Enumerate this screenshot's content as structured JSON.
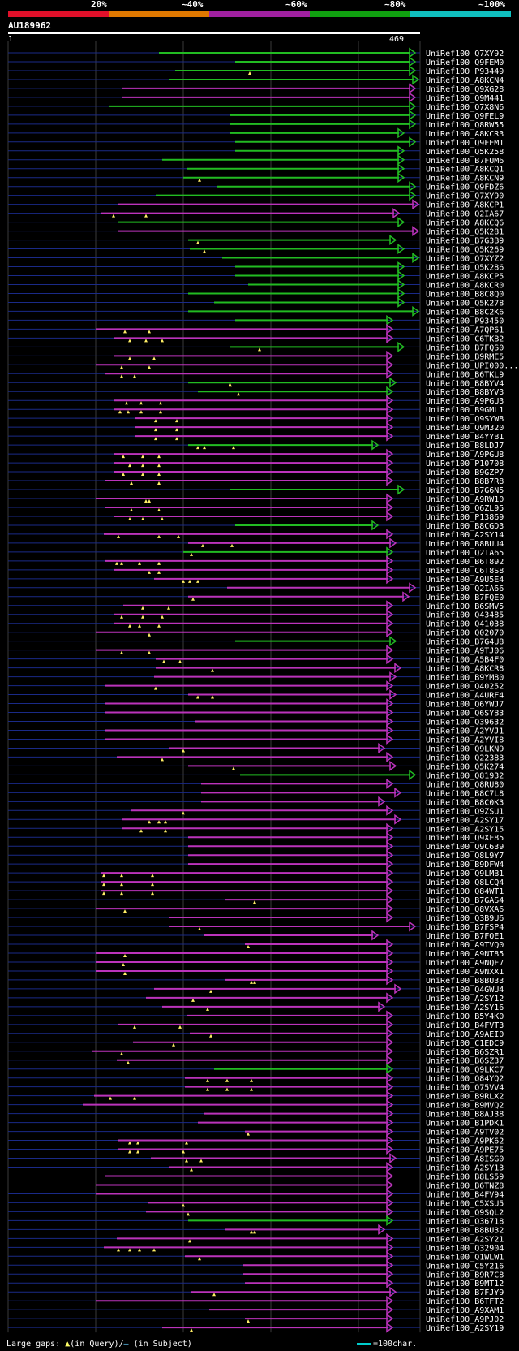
{
  "legend": {
    "labels": [
      "20%",
      "~40%",
      "~60%",
      "~80%",
      "~100%"
    ],
    "colors": [
      "#e0102a",
      "#e07800",
      "#a020a0",
      "#10a010",
      "#10c0c0"
    ]
  },
  "query": {
    "name": "AU189962",
    "start": "1",
    "end": "469"
  },
  "hits": [
    {
      "name": "UniRef100_Q7XY92",
      "x1": 196,
      "x2": 512,
      "c": "g",
      "gaps": []
    },
    {
      "name": "UniRef100_Q9FEM0",
      "x1": 290,
      "x2": 512,
      "c": "g",
      "gaps": []
    },
    {
      "name": "UniRef100_P93449",
      "x1": 216,
      "x2": 512,
      "c": "g",
      "gaps": [
        308
      ]
    },
    {
      "name": "UniRef100_A8KCN4",
      "x1": 208,
      "x2": 516,
      "c": "g",
      "gaps": []
    },
    {
      "name": "UniRef100_Q9XG28",
      "x1": 150,
      "x2": 512,
      "c": "m",
      "gaps": []
    },
    {
      "name": "UniRef100_Q9M441",
      "x1": 150,
      "x2": 512,
      "c": "m",
      "gaps": []
    },
    {
      "name": "UniRef100_Q7X8N6",
      "x1": 134,
      "x2": 512,
      "c": "g",
      "gaps": []
    },
    {
      "name": "UniRef100_Q9FEL9",
      "x1": 284,
      "x2": 512,
      "c": "g",
      "gaps": []
    },
    {
      "name": "UniRef100_Q8RW55",
      "x1": 284,
      "x2": 512,
      "c": "g",
      "gaps": []
    },
    {
      "name": "UniRef100_A8KCR3",
      "x1": 284,
      "x2": 498,
      "c": "g",
      "gaps": []
    },
    {
      "name": "UniRef100_Q9FEM1",
      "x1": 290,
      "x2": 512,
      "c": "g",
      "gaps": []
    },
    {
      "name": "UniRef100_Q5K258",
      "x1": 290,
      "x2": 498,
      "c": "g",
      "gaps": []
    },
    {
      "name": "UniRef100_B7FUM6",
      "x1": 200,
      "x2": 498,
      "c": "g",
      "gaps": []
    },
    {
      "name": "UniRef100_A8KCQ1",
      "x1": 230,
      "x2": 498,
      "c": "g",
      "gaps": []
    },
    {
      "name": "UniRef100_A8KCN9",
      "x1": 226,
      "x2": 498,
      "c": "g",
      "gaps": [
        246
      ]
    },
    {
      "name": "UniRef100_Q9FDZ6",
      "x1": 268,
      "x2": 512,
      "c": "g",
      "gaps": []
    },
    {
      "name": "UniRef100_Q7XY90",
      "x1": 192,
      "x2": 512,
      "c": "g",
      "gaps": []
    },
    {
      "name": "UniRef100_A8KCP1",
      "x1": 146,
      "x2": 516,
      "c": "m",
      "gaps": []
    },
    {
      "name": "UniRef100_Q2IA67",
      "x1": 124,
      "x2": 492,
      "c": "m",
      "gaps": [
        140,
        180
      ]
    },
    {
      "name": "UniRef100_A8KCQ6",
      "x1": 146,
      "x2": 498,
      "c": "g",
      "gaps": []
    },
    {
      "name": "UniRef100_Q5K281",
      "x1": 146,
      "x2": 516,
      "c": "m",
      "gaps": []
    },
    {
      "name": "UniRef100_B7G3B9",
      "x1": 232,
      "x2": 488,
      "c": "g",
      "gaps": [
        244
      ]
    },
    {
      "name": "UniRef100_Q5K269",
      "x1": 234,
      "x2": 498,
      "c": "g",
      "gaps": [
        252
      ]
    },
    {
      "name": "UniRef100_Q7XYZ2",
      "x1": 274,
      "x2": 516,
      "c": "g",
      "gaps": []
    },
    {
      "name": "UniRef100_Q5K286",
      "x1": 290,
      "x2": 498,
      "c": "g",
      "gaps": []
    },
    {
      "name": "UniRef100_A8KCP5",
      "x1": 290,
      "x2": 498,
      "c": "g",
      "gaps": []
    },
    {
      "name": "UniRef100_A8KCR0",
      "x1": 306,
      "x2": 498,
      "c": "g",
      "gaps": []
    },
    {
      "name": "UniRef100_B8C8Q0",
      "x1": 232,
      "x2": 498,
      "c": "g",
      "gaps": []
    },
    {
      "name": "UniRef100_Q5K278",
      "x1": 264,
      "x2": 498,
      "c": "g",
      "gaps": []
    },
    {
      "name": "UniRef100_B8C2K6",
      "x1": 232,
      "x2": 516,
      "c": "g",
      "gaps": []
    },
    {
      "name": "UniRef100_P93450",
      "x1": 290,
      "x2": 484,
      "c": "g",
      "gaps": []
    },
    {
      "name": "UniRef100_A7QP61",
      "x1": 118,
      "x2": 484,
      "c": "m",
      "gaps": [
        154,
        184
      ]
    },
    {
      "name": "UniRef100_C6TKB2",
      "x1": 140,
      "x2": 484,
      "c": "m",
      "gaps": [
        160,
        180,
        200
      ]
    },
    {
      "name": "UniRef100_B7FQS0",
      "x1": 284,
      "x2": 498,
      "c": "g",
      "gaps": [
        320
      ]
    },
    {
      "name": "UniRef100_B9RME5",
      "x1": 140,
      "x2": 484,
      "c": "m",
      "gaps": [
        160,
        190
      ]
    },
    {
      "name": "UniRef100_UPI000...",
      "x1": 118,
      "x2": 484,
      "c": "m",
      "gaps": [
        150,
        184
      ]
    },
    {
      "name": "UniRef100_B6TKL9",
      "x1": 130,
      "x2": 484,
      "c": "m",
      "gaps": [
        150,
        166
      ]
    },
    {
      "name": "UniRef100_B8BYV4",
      "x1": 232,
      "x2": 488,
      "c": "g",
      "gaps": [
        284
      ]
    },
    {
      "name": "UniRef100_B8BYV3",
      "x1": 244,
      "x2": 484,
      "c": "g",
      "gaps": [
        294
      ]
    },
    {
      "name": "UniRef100_A9PGU3",
      "x1": 140,
      "x2": 484,
      "c": "m",
      "gaps": [
        156,
        174,
        198
      ]
    },
    {
      "name": "UniRef100_B9GML1",
      "x1": 140,
      "x2": 484,
      "c": "m",
      "gaps": [
        148,
        158,
        174,
        198
      ]
    },
    {
      "name": "UniRef100_Q9SYW8",
      "x1": 166,
      "x2": 484,
      "c": "m",
      "gaps": [
        192,
        218
      ]
    },
    {
      "name": "UniRef100_Q9M320",
      "x1": 166,
      "x2": 484,
      "c": "m",
      "gaps": [
        192,
        218
      ]
    },
    {
      "name": "UniRef100_B4YYB1",
      "x1": 166,
      "x2": 484,
      "c": "m",
      "gaps": [
        192,
        218
      ]
    },
    {
      "name": "UniRef100_B8LDJ7",
      "x1": 232,
      "x2": 466,
      "c": "g",
      "gaps": [
        244,
        252,
        288
      ]
    },
    {
      "name": "UniRef100_A9PGU8",
      "x1": 140,
      "x2": 484,
      "c": "m",
      "gaps": [
        152,
        176,
        196
      ]
    },
    {
      "name": "UniRef100_P10708",
      "x1": 140,
      "x2": 484,
      "c": "m",
      "gaps": [
        160,
        176,
        196
      ]
    },
    {
      "name": "UniRef100_B9GZP7",
      "x1": 140,
      "x2": 484,
      "c": "m",
      "gaps": [
        152,
        176,
        196
      ]
    },
    {
      "name": "UniRef100_B8B7R8",
      "x1": 130,
      "x2": 484,
      "c": "m",
      "gaps": [
        162,
        196
      ]
    },
    {
      "name": "UniRef100_B7G6N5",
      "x1": 284,
      "x2": 498,
      "c": "g",
      "gaps": []
    },
    {
      "name": "UniRef100_A9RW10",
      "x1": 118,
      "x2": 484,
      "c": "m",
      "gaps": [
        180,
        184
      ]
    },
    {
      "name": "UniRef100_Q6ZL95",
      "x1": 130,
      "x2": 484,
      "c": "m",
      "gaps": [
        162,
        196
      ]
    },
    {
      "name": "UniRef100_P13869",
      "x1": 140,
      "x2": 484,
      "c": "m",
      "gaps": [
        160,
        176,
        200
      ]
    },
    {
      "name": "UniRef100_B8CGD3",
      "x1": 290,
      "x2": 466,
      "c": "g",
      "gaps": []
    },
    {
      "name": "UniRef100_A2SY14",
      "x1": 128,
      "x2": 484,
      "c": "m",
      "gaps": [
        146,
        196,
        220
      ]
    },
    {
      "name": "UniRef100_B8BUU4",
      "x1": 232,
      "x2": 488,
      "c": "m",
      "gaps": [
        250,
        286
      ]
    },
    {
      "name": "UniRef100_Q2IA65",
      "x1": 226,
      "x2": 484,
      "c": "g",
      "gaps": [
        236
      ]
    },
    {
      "name": "UniRef100_B6T892",
      "x1": 130,
      "x2": 484,
      "c": "m",
      "gaps": [
        144,
        150,
        172,
        196
      ]
    },
    {
      "name": "UniRef100_C6T8S8",
      "x1": 140,
      "x2": 484,
      "c": "m",
      "gaps": [
        184,
        196
      ]
    },
    {
      "name": "UniRef100_A9U5E4",
      "x1": 190,
      "x2": 484,
      "c": "m",
      "gaps": [
        226,
        234,
        244
      ]
    },
    {
      "name": "UniRef100_Q2IA66",
      "x1": 280,
      "x2": 512,
      "c": "m",
      "gaps": []
    },
    {
      "name": "UniRef100_B7FQE0",
      "x1": 232,
      "x2": 504,
      "c": "m",
      "gaps": [
        238
      ]
    },
    {
      "name": "UniRef100_B6SMV5",
      "x1": 152,
      "x2": 484,
      "c": "m",
      "gaps": [
        176,
        208
      ]
    },
    {
      "name": "UniRef100_Q43485",
      "x1": 140,
      "x2": 484,
      "c": "m",
      "gaps": [
        150,
        176,
        200
      ]
    },
    {
      "name": "UniRef100_Q41038",
      "x1": 140,
      "x2": 484,
      "c": "m",
      "gaps": [
        160,
        172,
        196
      ]
    },
    {
      "name": "UniRef100_Q02070",
      "x1": 118,
      "x2": 484,
      "c": "m",
      "gaps": [
        184
      ]
    },
    {
      "name": "UniRef100_B7G4U8",
      "x1": 290,
      "x2": 488,
      "c": "g",
      "gaps": []
    },
    {
      "name": "UniRef100_A9TJ06",
      "x1": 118,
      "x2": 484,
      "c": "m",
      "gaps": [
        150,
        184
      ]
    },
    {
      "name": "UniRef100_A5B4F0",
      "x1": 192,
      "x2": 484,
      "c": "m",
      "gaps": [
        202,
        222
      ]
    },
    {
      "name": "UniRef100_A8KCR8",
      "x1": 192,
      "x2": 494,
      "c": "m",
      "gaps": [
        262
      ]
    },
    {
      "name": "UniRef100_B9YM80",
      "x1": 190,
      "x2": 488,
      "c": "m",
      "gaps": []
    },
    {
      "name": "UniRef100_Q40252",
      "x1": 130,
      "x2": 484,
      "c": "m",
      "gaps": [
        192
      ]
    },
    {
      "name": "UniRef100_A4URF4",
      "x1": 232,
      "x2": 488,
      "c": "m",
      "gaps": [
        244,
        262
      ]
    },
    {
      "name": "UniRef100_Q6YWJ7",
      "x1": 130,
      "x2": 484,
      "c": "m",
      "gaps": []
    },
    {
      "name": "UniRef100_Q6SYB3",
      "x1": 130,
      "x2": 484,
      "c": "m",
      "gaps": []
    },
    {
      "name": "UniRef100_Q39632",
      "x1": 240,
      "x2": 484,
      "c": "m",
      "gaps": []
    },
    {
      "name": "UniRef100_A2YVJ1",
      "x1": 130,
      "x2": 484,
      "c": "m",
      "gaps": []
    },
    {
      "name": "UniRef100_A2YVI8",
      "x1": 130,
      "x2": 484,
      "c": "m",
      "gaps": []
    },
    {
      "name": "UniRef100_Q9LKN9",
      "x1": 208,
      "x2": 474,
      "c": "m",
      "gaps": [
        226
      ]
    },
    {
      "name": "UniRef100_Q22383",
      "x1": 144,
      "x2": 484,
      "c": "m",
      "gaps": [
        200
      ]
    },
    {
      "name": "UniRef100_Q5K274",
      "x1": 232,
      "x2": 488,
      "c": "m",
      "gaps": [
        288
      ]
    },
    {
      "name": "UniRef100_Q81932",
      "x1": 296,
      "x2": 512,
      "c": "g",
      "gaps": []
    },
    {
      "name": "UniRef100_Q8RU80",
      "x1": 248,
      "x2": 484,
      "c": "m",
      "gaps": []
    },
    {
      "name": "UniRef100_B8C7L8",
      "x1": 248,
      "x2": 494,
      "c": "m",
      "gaps": []
    },
    {
      "name": "UniRef100_B8C0K3",
      "x1": 248,
      "x2": 474,
      "c": "m",
      "gaps": []
    },
    {
      "name": "UniRef100_Q9ZSU1",
      "x1": 162,
      "x2": 484,
      "c": "m",
      "gaps": [
        226
      ]
    },
    {
      "name": "UniRef100_A2SY17",
      "x1": 150,
      "x2": 494,
      "c": "m",
      "gaps": [
        184,
        196,
        204
      ]
    },
    {
      "name": "UniRef100_A2SY15",
      "x1": 150,
      "x2": 484,
      "c": "m",
      "gaps": [
        174,
        204
      ]
    },
    {
      "name": "UniRef100_Q9XF85",
      "x1": 232,
      "x2": 484,
      "c": "m",
      "gaps": []
    },
    {
      "name": "UniRef100_Q9C639",
      "x1": 232,
      "x2": 484,
      "c": "m",
      "gaps": []
    },
    {
      "name": "UniRef100_Q8L9Y7",
      "x1": 232,
      "x2": 484,
      "c": "m",
      "gaps": []
    },
    {
      "name": "UniRef100_B9DFW4",
      "x1": 232,
      "x2": 484,
      "c": "m",
      "gaps": []
    },
    {
      "name": "UniRef100_Q9LMB1",
      "x1": 124,
      "x2": 484,
      "c": "m",
      "gaps": [
        128,
        150,
        188
      ]
    },
    {
      "name": "UniRef100_Q8LCQ4",
      "x1": 124,
      "x2": 484,
      "c": "m",
      "gaps": [
        128,
        150,
        188
      ]
    },
    {
      "name": "UniRef100_Q84WT1",
      "x1": 124,
      "x2": 484,
      "c": "m",
      "gaps": [
        128,
        150,
        188
      ]
    },
    {
      "name": "UniRef100_B7GAS4",
      "x1": 278,
      "x2": 484,
      "c": "m",
      "gaps": [
        314
      ]
    },
    {
      "name": "UniRef100_Q8VXA6",
      "x1": 118,
      "x2": 484,
      "c": "m",
      "gaps": [
        154
      ]
    },
    {
      "name": "UniRef100_Q3B9U6",
      "x1": 208,
      "x2": 484,
      "c": "m",
      "gaps": []
    },
    {
      "name": "UniRef100_B7FSP4",
      "x1": 208,
      "x2": 512,
      "c": "m",
      "gaps": [
        246
      ]
    },
    {
      "name": "UniRef100_B7FQE1",
      "x1": 252,
      "x2": 466,
      "c": "m",
      "gaps": []
    },
    {
      "name": "UniRef100_A9TVQ0",
      "x1": 302,
      "x2": 484,
      "c": "m",
      "gaps": [
        306
      ]
    },
    {
      "name": "UniRef100_A9NT85",
      "x1": 118,
      "x2": 484,
      "c": "m",
      "gaps": [
        154
      ]
    },
    {
      "name": "UniRef100_A9NQF7",
      "x1": 118,
      "x2": 484,
      "c": "m",
      "gaps": [
        152
      ]
    },
    {
      "name": "UniRef100_A9NXX1",
      "x1": 118,
      "x2": 484,
      "c": "m",
      "gaps": [
        154
      ]
    },
    {
      "name": "UniRef100_B8BU33",
      "x1": 278,
      "x2": 484,
      "c": "m",
      "gaps": [
        310,
        314
      ]
    },
    {
      "name": "UniRef100_Q4GWU4",
      "x1": 190,
      "x2": 494,
      "c": "m",
      "gaps": [
        260
      ]
    },
    {
      "name": "UniRef100_A2SY12",
      "x1": 180,
      "x2": 484,
      "c": "m",
      "gaps": [
        238
      ]
    },
    {
      "name": "UniRef100_A2SY16",
      "x1": 200,
      "x2": 474,
      "c": "m",
      "gaps": [
        256
      ]
    },
    {
      "name": "UniRef100_B5Y4K0",
      "x1": 230,
      "x2": 484,
      "c": "m",
      "gaps": []
    },
    {
      "name": "UniRef100_B4FVT3",
      "x1": 146,
      "x2": 484,
      "c": "m",
      "gaps": [
        166,
        222
      ]
    },
    {
      "name": "UniRef100_A9AEI0",
      "x1": 234,
      "x2": 484,
      "c": "m",
      "gaps": [
        260
      ]
    },
    {
      "name": "UniRef100_C1EDC9",
      "x1": 164,
      "x2": 484,
      "c": "m",
      "gaps": [
        214
      ]
    },
    {
      "name": "UniRef100_B6SZR1",
      "x1": 114,
      "x2": 484,
      "c": "m",
      "gaps": [
        150
      ]
    },
    {
      "name": "UniRef100_B6SZ37",
      "x1": 144,
      "x2": 484,
      "c": "m",
      "gaps": [
        158
      ]
    },
    {
      "name": "UniRef100_Q9LKC7",
      "x1": 264,
      "x2": 484,
      "c": "g",
      "gaps": []
    },
    {
      "name": "UniRef100_Q84YQ2",
      "x1": 228,
      "x2": 484,
      "c": "m",
      "gaps": [
        256,
        280,
        310
      ]
    },
    {
      "name": "UniRef100_Q75VV4",
      "x1": 228,
      "x2": 484,
      "c": "m",
      "gaps": [
        256,
        280,
        310
      ]
    },
    {
      "name": "UniRef100_B9RLX2",
      "x1": 116,
      "x2": 484,
      "c": "m",
      "gaps": [
        136,
        166
      ]
    },
    {
      "name": "UniRef100_B9MVQ2",
      "x1": 102,
      "x2": 484,
      "c": "m",
      "gaps": []
    },
    {
      "name": "UniRef100_B8AJ38",
      "x1": 252,
      "x2": 484,
      "c": "m",
      "gaps": []
    },
    {
      "name": "UniRef100_B1PDK1",
      "x1": 244,
      "x2": 484,
      "c": "m",
      "gaps": []
    },
    {
      "name": "UniRef100_A9TV02",
      "x1": 302,
      "x2": 484,
      "c": "m",
      "gaps": [
        306
      ]
    },
    {
      "name": "UniRef100_A9PK62",
      "x1": 146,
      "x2": 484,
      "c": "m",
      "gaps": [
        160,
        170,
        230
      ]
    },
    {
      "name": "UniRef100_A9PE75",
      "x1": 146,
      "x2": 484,
      "c": "m",
      "gaps": [
        160,
        170,
        226
      ]
    },
    {
      "name": "UniRef100_A8ISG0",
      "x1": 186,
      "x2": 488,
      "c": "m",
      "gaps": [
        230,
        248
      ]
    },
    {
      "name": "UniRef100_A2SY13",
      "x1": 208,
      "x2": 484,
      "c": "m",
      "gaps": [
        236
      ]
    },
    {
      "name": "UniRef100_B8LS59",
      "x1": 130,
      "x2": 484,
      "c": "m",
      "gaps": []
    },
    {
      "name": "UniRef100_B6TNZ8",
      "x1": 118,
      "x2": 484,
      "c": "m",
      "gaps": []
    },
    {
      "name": "UniRef100_B4FV94",
      "x1": 118,
      "x2": 484,
      "c": "m",
      "gaps": []
    },
    {
      "name": "UniRef100_C5XSU5",
      "x1": 182,
      "x2": 484,
      "c": "m",
      "gaps": [
        226
      ]
    },
    {
      "name": "UniRef100_Q9SQL2",
      "x1": 180,
      "x2": 484,
      "c": "m",
      "gaps": [
        232
      ]
    },
    {
      "name": "UniRef100_Q36718",
      "x1": 232,
      "x2": 484,
      "c": "g",
      "gaps": []
    },
    {
      "name": "UniRef100_B8BU32",
      "x1": 278,
      "x2": 474,
      "c": "m",
      "gaps": [
        310,
        314
      ]
    },
    {
      "name": "UniRef100_A2SY21",
      "x1": 144,
      "x2": 484,
      "c": "m",
      "gaps": [
        234
      ]
    },
    {
      "name": "UniRef100_Q32904",
      "x1": 128,
      "x2": 484,
      "c": "m",
      "gaps": [
        146,
        160,
        172,
        190
      ]
    },
    {
      "name": "UniRef100_Q1WLW1",
      "x1": 228,
      "x2": 484,
      "c": "m",
      "gaps": [
        246
      ]
    },
    {
      "name": "UniRef100_C5Y216",
      "x1": 300,
      "x2": 484,
      "c": "m",
      "gaps": []
    },
    {
      "name": "UniRef100_B9R7C8",
      "x1": 300,
      "x2": 484,
      "c": "m",
      "gaps": []
    },
    {
      "name": "UniRef100_B9MT12",
      "x1": 302,
      "x2": 484,
      "c": "m",
      "gaps": []
    },
    {
      "name": "UniRef100_B7FJY9",
      "x1": 236,
      "x2": 488,
      "c": "m",
      "gaps": [
        264
      ]
    },
    {
      "name": "UniRef100_B6TFT2",
      "x1": 118,
      "x2": 484,
      "c": "m",
      "gaps": []
    },
    {
      "name": "UniRef100_A9XAM1",
      "x1": 258,
      "x2": 484,
      "c": "m",
      "gaps": []
    },
    {
      "name": "UniRef100_A9PJ02",
      "x1": 302,
      "x2": 484,
      "c": "m",
      "gaps": [
        306
      ]
    },
    {
      "name": "UniRef100_A2SY19",
      "x1": 200,
      "x2": 484,
      "c": "m",
      "gaps": [
        236
      ]
    }
  ],
  "footer": {
    "prefix": "Large gaps: ",
    "tri": "▲",
    "in_query": "(in Query)/",
    "dash": "—",
    "in_subject": " (in Subject)",
    "scale": "=100char."
  },
  "colors": {
    "green": "#22bb22",
    "magenta": "#bb33bb",
    "navy": "#1a2a88",
    "gap": "#ffee66",
    "grid": "#3a3a3a"
  }
}
